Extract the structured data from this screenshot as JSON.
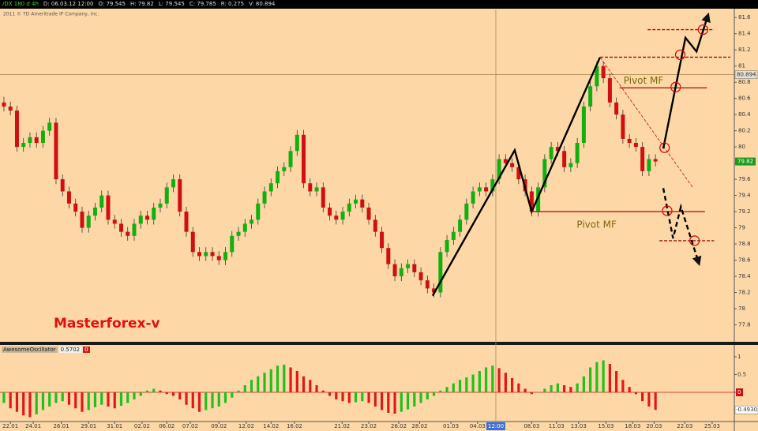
{
  "header": {
    "symbol": "/DX 180 d 4h",
    "fields": [
      "D: 06.03.12 12:00",
      "O: 79.545",
      "H: 79.82",
      "L: 79.545",
      "C: 79.785",
      "R: 0.275",
      "V: 80.894"
    ],
    "copyright": "2011 © TD Ameritrade IP Company, Inc."
  },
  "chart_data": [
    {
      "type": "candlestick",
      "annotation_text": "Masterforex-v",
      "up_color": "#10b010",
      "down_color": "#d01010",
      "xlim": [
        -0.6,
        112.1
      ],
      "ylim": [
        77.59,
        81.7
      ],
      "yticks": [
        77.8,
        78,
        78.2,
        78.4,
        78.6,
        78.8,
        79,
        79.2,
        79.4,
        79.6,
        79.8,
        80,
        80.2,
        80.4,
        80.6,
        80.8,
        81,
        81.2,
        81.4,
        81.6
      ],
      "xticks": [
        {
          "value": 1,
          "label": "22.01"
        },
        {
          "value": 4.5,
          "label": "24.01"
        },
        {
          "value": 8.8,
          "label": "26.01"
        },
        {
          "value": 13,
          "label": "29.01"
        },
        {
          "value": 17,
          "label": "31.01"
        },
        {
          "value": 21.2,
          "label": "02.02"
        },
        {
          "value": 25,
          "label": "06.02"
        },
        {
          "value": 28.6,
          "label": "07.02"
        },
        {
          "value": 33,
          "label": "09.02"
        },
        {
          "value": 37.2,
          "label": "12.02"
        },
        {
          "value": 41,
          "label": "14.02"
        },
        {
          "value": 44.6,
          "label": "16.02"
        },
        {
          "value": 51.9,
          "label": "21.02"
        },
        {
          "value": 56,
          "label": "23.02"
        },
        {
          "value": 60.6,
          "label": "26.02"
        },
        {
          "value": 63.8,
          "label": "28.02"
        },
        {
          "value": 68.6,
          "label": "01.03"
        },
        {
          "value": 72.7,
          "label": "04.03"
        },
        {
          "value": 81,
          "label": "08.03"
        },
        {
          "value": 84.8,
          "label": "11.03"
        },
        {
          "value": 88.2,
          "label": "13.03"
        },
        {
          "value": 92.4,
          "label": "15.03"
        },
        {
          "value": 96.5,
          "label": "18.03"
        },
        {
          "value": 99.8,
          "label": "20.03"
        },
        {
          "value": 104.5,
          "label": "22.03"
        },
        {
          "value": 108.7,
          "label": "25.03"
        }
      ],
      "crosshair": {
        "x": 75.5,
        "y": 80.894,
        "x_label": "12:00"
      },
      "candles": [
        [
          80.55,
          80.62,
          80.44,
          80.5
        ],
        [
          80.5,
          80.56,
          80.39,
          80.45
        ],
        [
          80.45,
          80.51,
          79.94,
          80.0
        ],
        [
          80.0,
          80.11,
          79.94,
          80.05
        ],
        [
          80.05,
          80.18,
          79.99,
          80.12
        ],
        [
          80.12,
          80.18,
          79.99,
          80.05
        ],
        [
          80.05,
          80.26,
          79.99,
          80.2
        ],
        [
          80.2,
          80.36,
          80.14,
          80.3
        ],
        [
          80.3,
          80.36,
          79.54,
          79.6
        ],
        [
          79.6,
          79.66,
          79.39,
          79.45
        ],
        [
          79.45,
          79.51,
          79.24,
          79.3
        ],
        [
          79.3,
          79.36,
          79.14,
          79.2
        ],
        [
          79.2,
          79.26,
          78.94,
          79.0
        ],
        [
          79.0,
          79.21,
          78.94,
          79.15
        ],
        [
          79.15,
          79.31,
          79.09,
          79.25
        ],
        [
          79.25,
          79.46,
          79.19,
          79.4
        ],
        [
          79.4,
          79.46,
          79.04,
          79.1
        ],
        [
          79.1,
          79.16,
          78.99,
          79.05
        ],
        [
          79.05,
          79.11,
          78.89,
          78.95
        ],
        [
          78.95,
          79.01,
          78.84,
          78.9
        ],
        [
          78.9,
          79.11,
          78.84,
          79.05
        ],
        [
          79.05,
          79.21,
          78.99,
          79.15
        ],
        [
          79.15,
          79.21,
          79.04,
          79.1
        ],
        [
          79.1,
          79.31,
          79.04,
          79.25
        ],
        [
          79.25,
          79.36,
          79.19,
          79.3
        ],
        [
          79.3,
          79.56,
          79.24,
          79.5
        ],
        [
          79.5,
          79.66,
          79.44,
          79.6
        ],
        [
          79.6,
          79.66,
          79.14,
          79.2
        ],
        [
          79.2,
          79.26,
          78.89,
          78.95
        ],
        [
          78.95,
          79.01,
          78.64,
          78.7
        ],
        [
          78.7,
          78.76,
          78.59,
          78.65
        ],
        [
          78.65,
          78.76,
          78.59,
          78.7
        ],
        [
          78.7,
          78.76,
          78.59,
          78.65
        ],
        [
          78.65,
          78.71,
          78.54,
          78.6
        ],
        [
          78.6,
          78.76,
          78.54,
          78.7
        ],
        [
          78.7,
          78.96,
          78.64,
          78.9
        ],
        [
          78.9,
          79.01,
          78.84,
          78.95
        ],
        [
          78.95,
          79.11,
          78.89,
          79.05
        ],
        [
          79.05,
          79.16,
          78.99,
          79.1
        ],
        [
          79.1,
          79.36,
          79.04,
          79.3
        ],
        [
          79.3,
          79.51,
          79.24,
          79.45
        ],
        [
          79.45,
          79.61,
          79.39,
          79.55
        ],
        [
          79.55,
          79.76,
          79.49,
          79.7
        ],
        [
          79.7,
          79.81,
          79.64,
          79.75
        ],
        [
          79.75,
          80.01,
          79.69,
          79.95
        ],
        [
          79.95,
          80.21,
          79.89,
          80.15
        ],
        [
          80.15,
          80.21,
          79.49,
          79.55
        ],
        [
          79.55,
          79.61,
          79.39,
          79.45
        ],
        [
          79.45,
          79.56,
          79.39,
          79.5
        ],
        [
          79.5,
          79.56,
          79.19,
          79.25
        ],
        [
          79.25,
          79.31,
          79.09,
          79.15
        ],
        [
          79.15,
          79.21,
          79.04,
          79.1
        ],
        [
          79.1,
          79.26,
          79.04,
          79.2
        ],
        [
          79.2,
          79.36,
          79.14,
          79.3
        ],
        [
          79.3,
          79.41,
          79.24,
          79.35
        ],
        [
          79.35,
          79.41,
          79.19,
          79.25
        ],
        [
          79.25,
          79.31,
          79.04,
          79.1
        ],
        [
          79.1,
          79.16,
          78.89,
          78.95
        ],
        [
          78.95,
          79.01,
          78.69,
          78.75
        ],
        [
          78.75,
          78.81,
          78.49,
          78.55
        ],
        [
          78.55,
          78.61,
          78.34,
          78.4
        ],
        [
          78.4,
          78.56,
          78.34,
          78.5
        ],
        [
          78.5,
          78.61,
          78.44,
          78.55
        ],
        [
          78.55,
          78.61,
          78.39,
          78.45
        ],
        [
          78.45,
          78.51,
          78.29,
          78.35
        ],
        [
          78.35,
          78.41,
          78.19,
          78.25
        ],
        [
          78.25,
          78.31,
          78.14,
          78.2
        ],
        [
          78.2,
          78.76,
          78.14,
          78.7
        ],
        [
          78.7,
          78.91,
          78.64,
          78.85
        ],
        [
          78.85,
          79.01,
          78.79,
          78.95
        ],
        [
          78.95,
          79.16,
          78.89,
          79.1
        ],
        [
          79.1,
          79.36,
          79.04,
          79.3
        ],
        [
          79.3,
          79.51,
          79.24,
          79.45
        ],
        [
          79.45,
          79.56,
          79.39,
          79.5
        ],
        [
          79.5,
          79.56,
          79.39,
          79.45
        ],
        [
          79.45,
          79.66,
          79.39,
          79.6
        ],
        [
          79.6,
          79.91,
          79.54,
          79.85
        ],
        [
          79.85,
          79.91,
          79.74,
          79.8
        ],
        [
          79.8,
          79.86,
          79.69,
          79.75
        ],
        [
          79.75,
          79.81,
          79.54,
          79.6
        ],
        [
          79.6,
          79.66,
          79.39,
          79.45
        ],
        [
          79.45,
          79.51,
          79.14,
          79.2
        ],
        [
          79.2,
          79.56,
          79.14,
          79.5
        ],
        [
          79.5,
          79.91,
          79.44,
          79.85
        ],
        [
          79.85,
          80.06,
          79.79,
          80.0
        ],
        [
          80.0,
          80.06,
          79.89,
          79.95
        ],
        [
          79.95,
          80.01,
          79.69,
          79.75
        ],
        [
          79.75,
          79.86,
          79.69,
          79.8
        ],
        [
          79.8,
          80.11,
          79.74,
          80.05
        ],
        [
          80.05,
          80.56,
          79.99,
          80.5
        ],
        [
          80.5,
          80.81,
          80.44,
          80.75
        ],
        [
          80.75,
          81.06,
          80.69,
          81.0
        ],
        [
          81.0,
          81.06,
          80.79,
          80.85
        ],
        [
          80.85,
          80.91,
          80.49,
          80.55
        ],
        [
          80.55,
          80.61,
          80.34,
          80.4
        ],
        [
          80.4,
          80.46,
          80.04,
          80.1
        ],
        [
          80.1,
          80.16,
          79.99,
          80.05
        ],
        [
          80.05,
          80.11,
          79.94,
          80.0
        ],
        [
          80.0,
          80.06,
          79.64,
          79.7
        ],
        [
          79.7,
          79.91,
          79.64,
          79.85
        ],
        [
          79.85,
          79.91,
          79.76,
          79.82
        ]
      ],
      "lines": [
        {
          "points": [
            [
              65.8,
              78.16
            ],
            [
              78.4,
              79.96
            ],
            [
              81,
              79.2
            ],
            [
              91.5,
              81.11
            ]
          ],
          "color": "#000000",
          "style": "solid",
          "weight": "bold",
          "arrow": false
        },
        {
          "points": [
            [
              91.5,
              81.11
            ],
            [
              111.5,
              81.11
            ]
          ],
          "color": "#a01010",
          "style": "dashed",
          "weight": "normal",
          "arrow": false
        },
        {
          "points": [
            [
              98.8,
              81.45
            ],
            [
              109,
              81.45
            ]
          ],
          "color": "#a01010",
          "style": "dashed",
          "weight": "normal",
          "arrow": false
        },
        {
          "name": "Pivot MF",
          "label_side": "above",
          "points": [
            [
              94.5,
              80.73
            ],
            [
              107.9,
              80.73
            ]
          ],
          "color": "#b01818",
          "style": "solid",
          "weight": "normal",
          "arrow": false
        },
        {
          "name": "Pivot MF",
          "label_side": "below",
          "points": [
            [
              81,
              79.2
            ],
            [
              107.6,
              79.2
            ]
          ],
          "color": "#b01818",
          "style": "solid",
          "weight": "normal",
          "arrow": false
        },
        {
          "points": [
            [
              91.5,
              81.11
            ],
            [
              105.8,
              79.49
            ]
          ],
          "color": "#d02020",
          "style": "dashed",
          "weight": "thin",
          "arrow": false
        },
        {
          "points": [
            [
              100.6,
              78.84
            ],
            [
              109,
              78.84
            ]
          ],
          "color": "#a01010",
          "style": "dashed",
          "weight": "normal",
          "arrow": false
        },
        {
          "points": [
            [
              101.2,
              79.98
            ],
            [
              104.6,
              81.35
            ],
            [
              106.3,
              81.18
            ],
            [
              108.1,
              81.64
            ]
          ],
          "color": "#000000",
          "style": "solid",
          "weight": "bold",
          "arrow": true
        },
        {
          "points": [
            [
              101.2,
              79.49
            ],
            [
              102.7,
              78.87
            ],
            [
              103.9,
              79.26
            ],
            [
              106.7,
              78.55
            ]
          ],
          "color": "#000000",
          "style": "dashed",
          "weight": "bold",
          "arrow": true
        }
      ],
      "circles": [
        [
          101.4,
          79.99
        ],
        [
          103.1,
          80.74
        ],
        [
          103.8,
          81.14
        ],
        [
          107.3,
          81.45
        ],
        [
          101.8,
          79.21
        ],
        [
          106.0,
          78.84
        ]
      ],
      "circle_color": "#d01010"
    },
    {
      "type": "oscillator",
      "title": "AwesomeOscillator",
      "header_value": 0.5702,
      "header_param": 0,
      "up_color": "#20c020",
      "down_color": "#e01818",
      "zero_color": "#d01010",
      "ylim": [
        -0.8,
        1.31
      ],
      "yticks": [
        1,
        0.5,
        0
      ],
      "last_label": "-0.4930",
      "values": [
        -0.3,
        -0.45,
        -0.55,
        -0.65,
        -0.7,
        -0.62,
        -0.5,
        -0.4,
        -0.3,
        -0.25,
        -0.35,
        -0.45,
        -0.55,
        -0.5,
        -0.42,
        -0.35,
        -0.4,
        -0.45,
        -0.38,
        -0.3,
        -0.2,
        -0.1,
        0.05,
        0.1,
        0.05,
        -0.05,
        -0.1,
        -0.2,
        -0.35,
        -0.45,
        -0.55,
        -0.5,
        -0.45,
        -0.4,
        -0.3,
        -0.15,
        0.05,
        0.2,
        0.35,
        0.45,
        0.55,
        0.65,
        0.75,
        0.78,
        0.7,
        0.6,
        0.45,
        0.35,
        0.2,
        0.05,
        -0.1,
        -0.2,
        -0.25,
        -0.3,
        -0.28,
        -0.25,
        -0.3,
        -0.4,
        -0.5,
        -0.58,
        -0.6,
        -0.55,
        -0.48,
        -0.4,
        -0.3,
        -0.2,
        -0.1,
        0.05,
        0.15,
        0.25,
        0.35,
        0.42,
        0.5,
        0.6,
        0.7,
        0.75,
        0.68,
        0.55,
        0.4,
        0.25,
        0.1,
        -0.05,
        0.0,
        0.1,
        0.2,
        0.25,
        0.2,
        0.15,
        0.25,
        0.45,
        0.7,
        0.85,
        0.9,
        0.8,
        0.6,
        0.35,
        0.15,
        -0.05,
        -0.25,
        -0.4,
        -0.493
      ]
    }
  ]
}
